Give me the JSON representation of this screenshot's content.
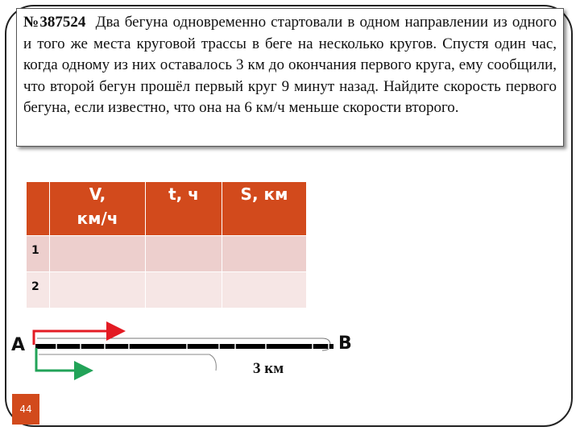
{
  "problem": {
    "number": "№387524",
    "text": "Два бегуна одновременно стартовали в одном направлении из одного и того же места круговой трассы в беге на несколько кругов. Спустя один час, когда одному из них оставалось 3 км до окончания первого круга, ему сообщили, что второй бегун прошёл первый круг 9 минут назад. Найдите скорость первого бегуна, если известно, что она на 6 км/ч меньше скорости второго."
  },
  "table": {
    "headers": [
      "",
      "V, км/ч",
      "t, ч",
      "S, км"
    ],
    "rows": [
      {
        "label": "1",
        "cells": [
          "",
          "",
          ""
        ]
      },
      {
        "label": "2",
        "cells": [
          "",
          "",
          ""
        ]
      }
    ]
  },
  "diagram": {
    "point_a": "A",
    "point_b": "B",
    "distance": "3 км"
  },
  "page_number": "44",
  "colors": {
    "header_fill": "#d24a1c",
    "row1_fill": "#edcfcd",
    "row2_fill": "#f6e6e5",
    "arrow_red": "#e31b23",
    "arrow_green": "#22a358"
  }
}
